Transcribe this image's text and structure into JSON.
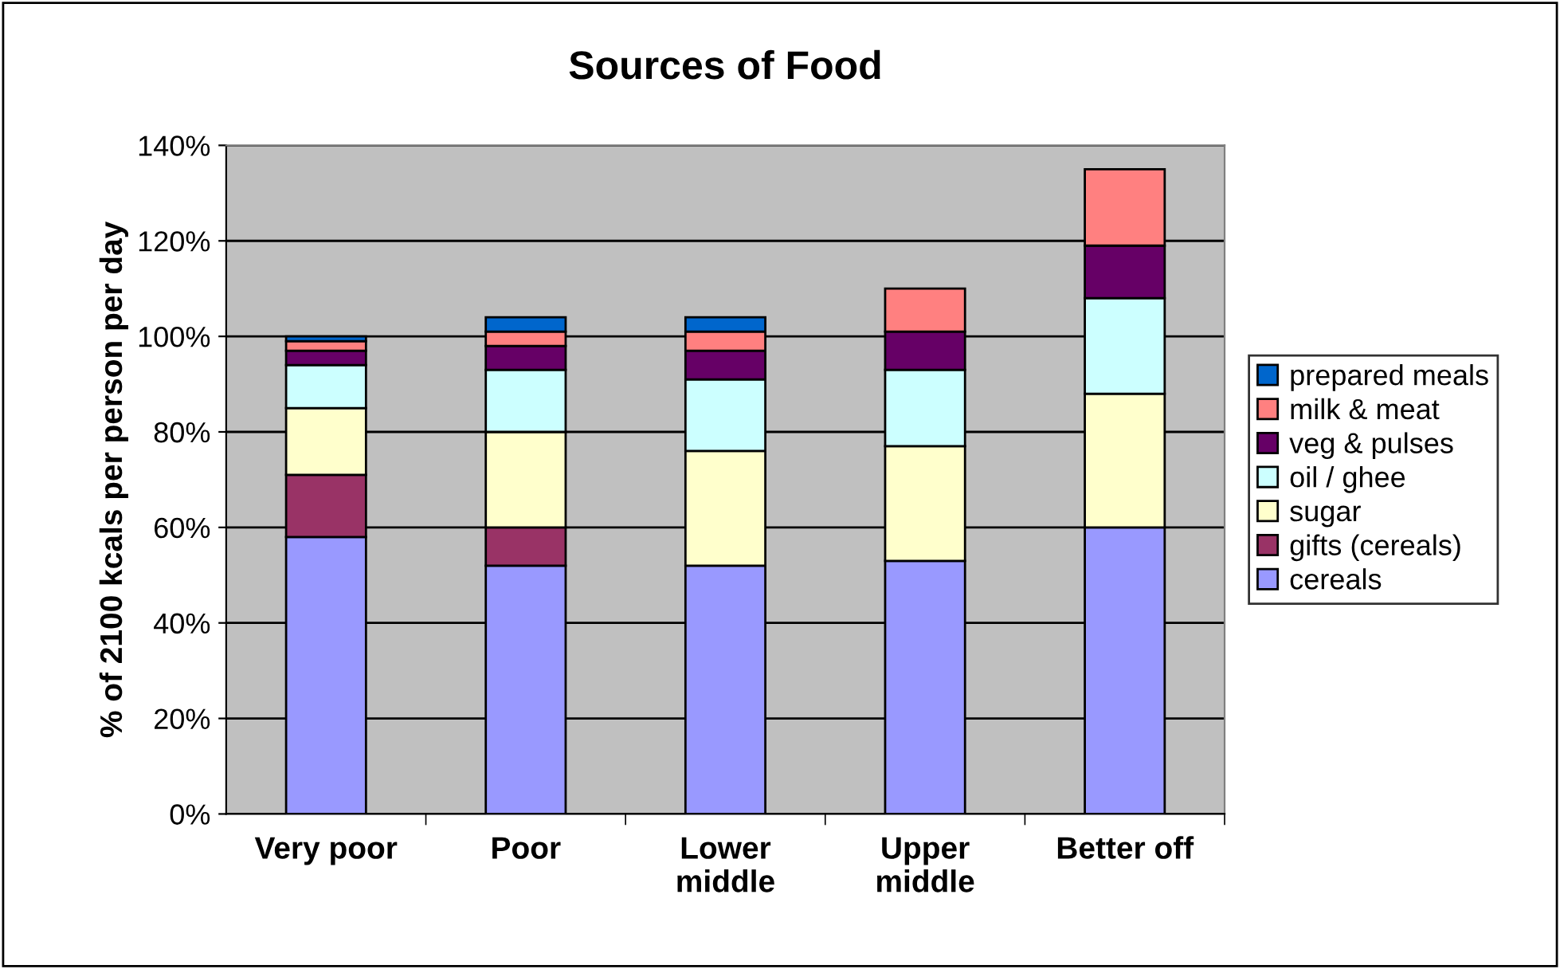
{
  "chart_data": {
    "type": "bar",
    "title": "Sources of Food",
    "ylabel": "% of 2100 kcals per person per day",
    "categories": [
      "Very poor",
      "Poor",
      "Lower\nmiddle",
      "Upper\nmiddle",
      "Better off"
    ],
    "stacked": true,
    "series": [
      {
        "name": "cereals",
        "color": "#9999ff",
        "values": [
          58,
          52,
          52,
          53,
          60
        ]
      },
      {
        "name": "gifts (cereals)",
        "color": "#993366",
        "values": [
          13,
          8,
          0,
          0,
          0
        ]
      },
      {
        "name": "sugar",
        "color": "#ffffcc",
        "values": [
          14,
          20,
          24,
          24,
          28
        ]
      },
      {
        "name": "oil / ghee",
        "color": "#ccffff",
        "values": [
          9,
          13,
          15,
          16,
          20
        ]
      },
      {
        "name": "veg & pulses",
        "color": "#660066",
        "values": [
          3,
          5,
          6,
          8,
          11
        ]
      },
      {
        "name": "milk & meat",
        "color": "#ff8080",
        "values": [
          2,
          3,
          4,
          9,
          16
        ]
      },
      {
        "name": "prepared meals",
        "color": "#0066cc",
        "values": [
          1,
          3,
          3,
          0,
          0
        ]
      }
    ],
    "ylim": [
      0,
      140
    ],
    "yticks": [
      {
        "value": 0,
        "label": "0%"
      },
      {
        "value": 20,
        "label": "20%"
      },
      {
        "value": 40,
        "label": "40%"
      },
      {
        "value": 60,
        "label": "60%"
      },
      {
        "value": 80,
        "label": "80%"
      },
      {
        "value": 100,
        "label": "100%"
      },
      {
        "value": 120,
        "label": "120%"
      },
      {
        "value": 140,
        "label": "140%"
      }
    ],
    "grid": "y",
    "legend": "right"
  }
}
